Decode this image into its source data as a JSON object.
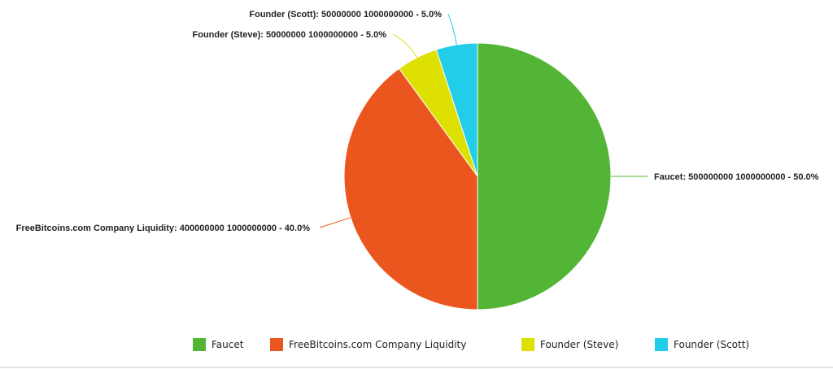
{
  "chart_data": {
    "type": "pie",
    "slices": [
      {
        "name": "Faucet",
        "value": 50.0,
        "label": "Faucet: 500000000 1000000000 - 50.0%",
        "color": "#53b535"
      },
      {
        "name": "FreeBitcoins.com Company Liquidity",
        "value": 40.0,
        "label": "FreeBitcoins.com Company Liquidity: 400000000 1000000000 - 40.0%",
        "color": "#ea561e"
      },
      {
        "name": "Founder (Steve)",
        "value": 5.0,
        "label": "Founder (Steve): 50000000 1000000000 - 5.0%",
        "color": "#dde000"
      },
      {
        "name": "Founder (Scott)",
        "value": 5.0,
        "label": "Founder (Scott): 50000000 1000000000 - 5.0%",
        "color": "#22cde9"
      }
    ],
    "legend": {
      "placement": "bottom",
      "items": [
        "Faucet",
        "FreeBitcoins.com Company Liquidity",
        "Founder (Steve)",
        "Founder (Scott)"
      ]
    }
  }
}
